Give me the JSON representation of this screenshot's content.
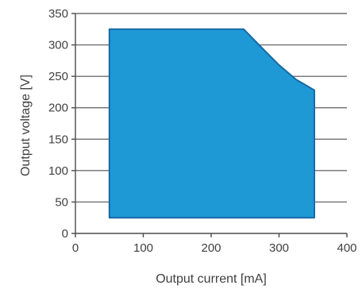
{
  "chart_data": {
    "type": "area",
    "xlabel": "Output current [mA]",
    "ylabel": "Output voltage [V]",
    "xlim": [
      0,
      400
    ],
    "ylim": [
      0,
      350
    ],
    "xticks": [
      0,
      100,
      200,
      300,
      400
    ],
    "yticks": [
      0,
      50,
      100,
      150,
      200,
      250,
      300,
      350
    ],
    "grid": "horizontal",
    "region": {
      "points": [
        [
          50,
          25
        ],
        [
          50,
          325
        ],
        [
          248,
          325
        ],
        [
          275,
          295
        ],
        [
          300,
          268
        ],
        [
          325,
          245
        ],
        [
          352,
          228
        ],
        [
          352,
          25
        ]
      ],
      "fill": "#1f98d6",
      "stroke": "#1769a6"
    }
  }
}
